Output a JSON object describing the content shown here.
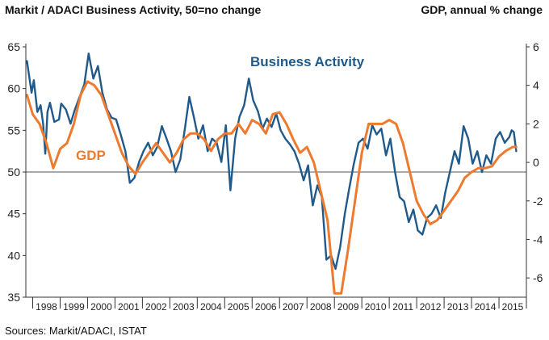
{
  "header": {
    "title_left": "Markit / ADACI  Business Activity, 50=no change",
    "title_right": "GDP, annual % change"
  },
  "footer": {
    "source": "Sources: Markit/ADACI, ISTAT"
  },
  "colors": {
    "business": "#1f5a8a",
    "gdp": "#ee7a2f",
    "axis": "#333333",
    "reference": "#555555"
  },
  "chart_data": {
    "type": "line",
    "left_axis": {
      "ylim": [
        35,
        65
      ],
      "ticks": [
        35,
        40,
        45,
        50,
        55,
        60,
        65
      ]
    },
    "right_axis": {
      "ylim": [
        -7,
        6
      ],
      "ticks": [
        -6,
        -4,
        -2,
        0,
        2,
        4,
        6
      ]
    },
    "reference_line": 50,
    "x_range": [
      1997.75,
      2016.0
    ],
    "years": [
      "1998",
      "1999",
      "2000",
      "2001",
      "2002",
      "2003",
      "2004",
      "2005",
      "2006",
      "2007",
      "2008",
      "2009",
      "2010",
      "2011",
      "2012",
      "2013",
      "2014",
      "2015"
    ],
    "series": [
      {
        "name": "Business Activity",
        "axis": "left",
        "x": [
          1997.79,
          1997.96,
          1998.04,
          1998.17,
          1998.29,
          1998.38,
          1998.46,
          1998.54,
          1998.63,
          1998.79,
          1998.96,
          1999.04,
          1999.21,
          1999.38,
          1999.54,
          1999.71,
          1999.88,
          2000.04,
          2000.21,
          2000.38,
          2000.54,
          2000.71,
          2000.88,
          2001.04,
          2001.21,
          2001.38,
          2001.54,
          2001.71,
          2001.88,
          2002.04,
          2002.21,
          2002.38,
          2002.54,
          2002.71,
          2002.88,
          2003.04,
          2003.21,
          2003.38,
          2003.54,
          2003.71,
          2003.88,
          2004.04,
          2004.21,
          2004.38,
          2004.54,
          2004.71,
          2004.88,
          2005.04,
          2005.21,
          2005.38,
          2005.54,
          2005.71,
          2005.88,
          2006.04,
          2006.21,
          2006.38,
          2006.54,
          2006.71,
          2006.88,
          2007.04,
          2007.21,
          2007.38,
          2007.54,
          2007.71,
          2007.88,
          2008.04,
          2008.21,
          2008.38,
          2008.54,
          2008.71,
          2008.88,
          2009.04,
          2009.21,
          2009.38,
          2009.54,
          2009.71,
          2009.88,
          2010.04,
          2010.21,
          2010.38,
          2010.54,
          2010.71,
          2010.88,
          2011.04,
          2011.21,
          2011.38,
          2011.54,
          2011.71,
          2011.88,
          2012.04,
          2012.21,
          2012.38,
          2012.54,
          2012.71,
          2012.88,
          2013.04,
          2013.21,
          2013.38,
          2013.54,
          2013.71,
          2013.88,
          2014.04,
          2014.21,
          2014.38,
          2014.54,
          2014.71,
          2014.88,
          2015.04,
          2015.21,
          2015.38,
          2015.46,
          2015.54,
          2015.63
        ],
        "values": [
          63.3,
          59.5,
          61,
          57.2,
          58,
          55.8,
          52.2,
          57.2,
          58.3,
          56,
          56.3,
          58.2,
          57.5,
          55.8,
          57.5,
          59,
          60.5,
          64.2,
          61.2,
          62.7,
          59.5,
          57.5,
          56.5,
          56.3,
          54.5,
          52.5,
          48.7,
          49.3,
          51.2,
          52.5,
          53.5,
          52,
          53,
          55.5,
          54,
          52.5,
          50,
          51.5,
          55,
          59,
          56.5,
          54,
          55.6,
          52.5,
          54,
          53.5,
          51.2,
          55.6,
          47.8,
          54,
          56.6,
          58,
          61.2,
          58.6,
          57.3,
          55.2,
          56.4,
          55.4,
          57,
          55,
          54,
          53.3,
          52.5,
          51,
          49,
          50.8,
          46,
          48.4,
          47,
          39.5,
          40,
          38.4,
          41,
          45,
          48,
          51,
          53.5,
          54,
          52.8,
          55.6,
          54.5,
          55.2,
          52,
          54,
          50,
          47,
          46.5,
          44,
          45.5,
          43,
          42.5,
          44.5,
          45,
          46,
          44.5,
          47.5,
          50,
          52.5,
          51,
          55.5,
          54,
          51,
          52.5,
          50,
          52,
          51,
          54,
          54.8,
          53.5,
          54.2,
          55,
          54.8,
          52.5
        ]
      },
      {
        "name": "GDP",
        "axis": "right",
        "x": [
          1997.79,
          1998.0,
          1998.25,
          1998.5,
          1998.75,
          1999.0,
          1999.25,
          1999.5,
          1999.75,
          2000.0,
          2000.25,
          2000.5,
          2000.75,
          2001.0,
          2001.25,
          2001.5,
          2001.75,
          2002.0,
          2002.25,
          2002.5,
          2002.75,
          2003.0,
          2003.25,
          2003.5,
          2003.75,
          2004.0,
          2004.25,
          2004.5,
          2004.75,
          2005.0,
          2005.25,
          2005.5,
          2005.75,
          2006.0,
          2006.25,
          2006.5,
          2006.75,
          2007.0,
          2007.25,
          2007.5,
          2007.75,
          2008.0,
          2008.25,
          2008.5,
          2008.75,
          2009.0,
          2009.25,
          2009.5,
          2009.75,
          2010.0,
          2010.25,
          2010.5,
          2010.75,
          2011.0,
          2011.25,
          2011.5,
          2011.75,
          2012.0,
          2012.25,
          2012.5,
          2012.75,
          2013.0,
          2013.25,
          2013.5,
          2013.75,
          2014.0,
          2014.25,
          2014.5,
          2014.75,
          2015.0,
          2015.25,
          2015.5,
          2015.63
        ],
        "values": [
          3.5,
          2.5,
          2,
          1,
          -0.3,
          0.7,
          1,
          2,
          3.5,
          4.2,
          4,
          3.5,
          2.5,
          1.5,
          0.5,
          -0.2,
          -0.6,
          0,
          0.5,
          1,
          0.5,
          0,
          0.5,
          1.2,
          1.5,
          1.5,
          1.2,
          0.6,
          1.2,
          1.5,
          1.5,
          2,
          1.5,
          2.2,
          2,
          1.5,
          2.5,
          2.6,
          2,
          1.2,
          0.5,
          0.8,
          0,
          -1.5,
          -3,
          -6.8,
          -6.8,
          -4.5,
          -2,
          0.5,
          2,
          2,
          2,
          2.2,
          2,
          1,
          -0.5,
          -2,
          -2.7,
          -3.2,
          -3,
          -2.5,
          -2,
          -1.5,
          -0.8,
          -0.5,
          -0.3,
          -0.3,
          -0.2,
          0.3,
          0.6,
          0.8,
          0.8
        ]
      }
    ],
    "series_labels": {
      "business": "Business Activity",
      "gdp": "GDP"
    }
  }
}
